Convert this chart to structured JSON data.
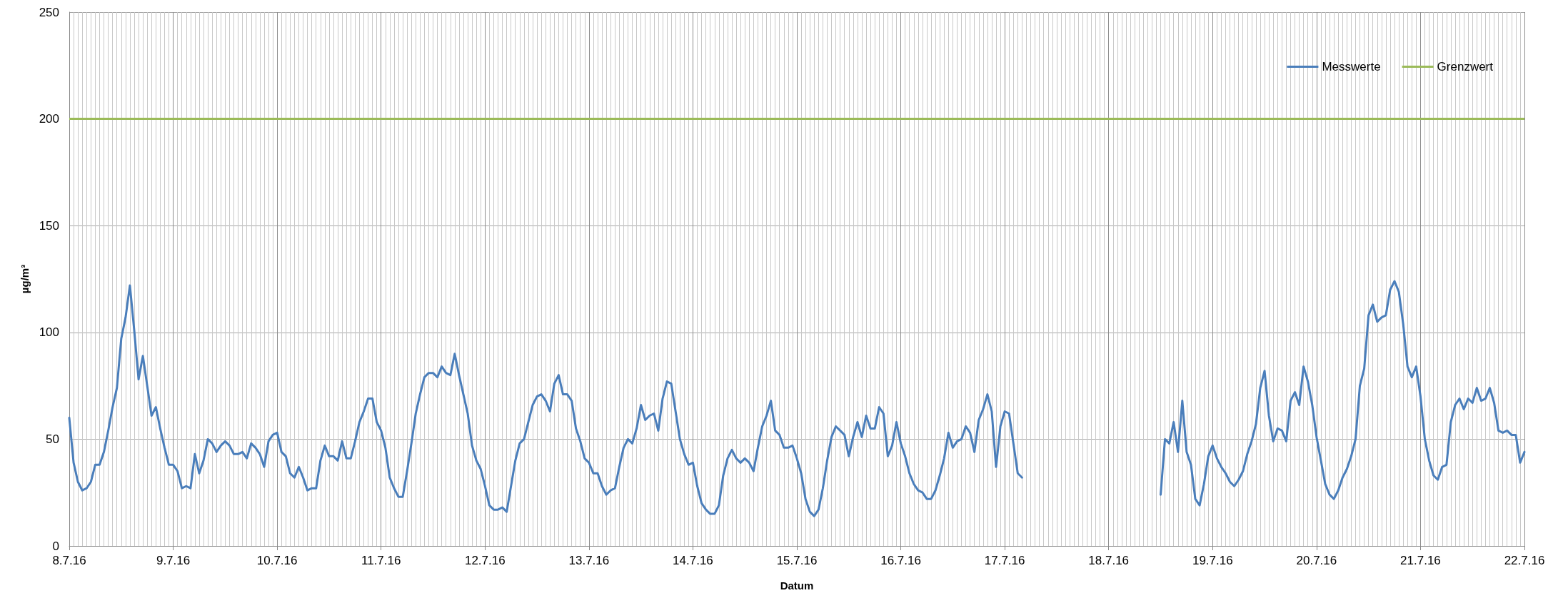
{
  "chart_data": {
    "type": "line",
    "xlabel": "Datum",
    "ylabel": "µg/m³",
    "xlim": [
      "--07-08",
      "--07-22"
    ],
    "xticks": [
      {
        "value": "--07-08",
        "label": "8.7.16"
      },
      {
        "value": "--07-09",
        "label": "9.7.16"
      },
      {
        "value": "--07-10",
        "label": "10.7.16"
      },
      {
        "value": "--07-11",
        "label": "11.7.16"
      },
      {
        "value": "--07-12",
        "label": "12.7.16"
      },
      {
        "value": "--07-13",
        "label": "13.7.16"
      },
      {
        "value": "--07-14",
        "label": "14.7.16"
      },
      {
        "value": "--07-15",
        "label": "15.7.16"
      },
      {
        "value": "--07-16",
        "label": "16.7.16"
      },
      {
        "value": "--07-17",
        "label": "17.7.16"
      },
      {
        "value": "--07-18",
        "label": "18.7.16"
      },
      {
        "value": "--07-19",
        "label": "19.7.16"
      },
      {
        "value": "--07-20",
        "label": "20.7.16"
      },
      {
        "value": "--07-21",
        "label": "21.7.16"
      },
      {
        "value": "--07-22",
        "label": "22.7.16"
      }
    ],
    "ylim": [
      0,
      250
    ],
    "yticks": [
      0,
      50,
      100,
      150,
      200,
      250
    ],
    "grid": true,
    "legend": "top right",
    "marker": "none",
    "line_style": "solid",
    "ref_lines": [
      {
        "axis": "y",
        "value": 200,
        "label": "Grenzwert",
        "color": "#9bbb59"
      }
    ],
    "series": [
      {
        "name": "Messwerte",
        "color": "#4a7ebb",
        "x": [
          "--07-08T00:00",
          "--07-08T01:00",
          "--07-08T02:00",
          "--07-08T03:00",
          "--07-08T04:00",
          "--07-08T05:00",
          "--07-08T06:00",
          "--07-08T07:00",
          "--07-08T08:00",
          "--07-08T09:00",
          "--07-08T10:00",
          "--07-08T11:00",
          "--07-08T12:00",
          "--07-08T13:00",
          "--07-08T14:00",
          "--07-08T15:00",
          "--07-08T16:00",
          "--07-08T17:00",
          "--07-08T18:00",
          "--07-08T19:00",
          "--07-08T20:00",
          "--07-08T21:00",
          "--07-08T22:00",
          "--07-08T23:00",
          "--07-09T00:00",
          "--07-09T01:00",
          "--07-09T02:00",
          "--07-09T03:00",
          "--07-09T04:00",
          "--07-09T05:00",
          "--07-09T06:00",
          "--07-09T07:00",
          "--07-09T08:00",
          "--07-09T09:00",
          "--07-09T10:00",
          "--07-09T11:00",
          "--07-09T12:00",
          "--07-09T13:00",
          "--07-09T14:00",
          "--07-09T15:00",
          "--07-09T16:00",
          "--07-09T17:00",
          "--07-09T18:00",
          "--07-09T19:00",
          "--07-09T20:00",
          "--07-09T21:00",
          "--07-09T22:00",
          "--07-09T23:00",
          "--07-10T00:00",
          "--07-10T01:00",
          "--07-10T02:00",
          "--07-10T03:00",
          "--07-10T04:00",
          "--07-10T05:00",
          "--07-10T06:00",
          "--07-10T07:00",
          "--07-10T08:00",
          "--07-10T09:00",
          "--07-10T10:00",
          "--07-10T11:00",
          "--07-10T12:00",
          "--07-10T13:00",
          "--07-10T14:00",
          "--07-10T15:00",
          "--07-10T16:00",
          "--07-10T17:00",
          "--07-10T18:00",
          "--07-10T19:00",
          "--07-10T20:00",
          "--07-10T21:00",
          "--07-10T22:00",
          "--07-10T23:00",
          "--07-11T00:00",
          "--07-11T01:00",
          "--07-11T02:00",
          "--07-11T03:00",
          "--07-11T04:00",
          "--07-11T05:00",
          "--07-11T06:00",
          "--07-11T07:00",
          "--07-11T08:00",
          "--07-11T09:00",
          "--07-11T10:00",
          "--07-11T11:00",
          "--07-11T12:00",
          "--07-11T13:00",
          "--07-11T14:00",
          "--07-11T15:00",
          "--07-11T16:00",
          "--07-11T17:00",
          "--07-11T18:00",
          "--07-11T19:00",
          "--07-11T20:00",
          "--07-11T21:00",
          "--07-11T22:00",
          "--07-11T23:00",
          "--07-12T00:00",
          "--07-12T01:00",
          "--07-12T02:00",
          "--07-12T03:00",
          "--07-12T04:00",
          "--07-12T05:00",
          "--07-12T06:00",
          "--07-12T07:00",
          "--07-12T08:00",
          "--07-12T09:00",
          "--07-12T10:00",
          "--07-12T11:00",
          "--07-12T12:00",
          "--07-12T13:00",
          "--07-12T14:00",
          "--07-12T15:00",
          "--07-12T16:00",
          "--07-12T17:00",
          "--07-12T18:00",
          "--07-12T19:00",
          "--07-12T20:00",
          "--07-12T21:00",
          "--07-12T22:00",
          "--07-12T23:00",
          "--07-13T00:00",
          "--07-13T01:00",
          "--07-13T02:00",
          "--07-13T03:00",
          "--07-13T04:00",
          "--07-13T05:00",
          "--07-13T06:00",
          "--07-13T07:00",
          "--07-13T08:00",
          "--07-13T09:00",
          "--07-13T10:00",
          "--07-13T11:00",
          "--07-13T12:00",
          "--07-13T13:00",
          "--07-13T14:00",
          "--07-13T15:00",
          "--07-13T16:00",
          "--07-13T17:00",
          "--07-13T18:00",
          "--07-13T19:00",
          "--07-13T20:00",
          "--07-13T21:00",
          "--07-13T22:00",
          "--07-13T23:00",
          "--07-14T00:00",
          "--07-14T01:00",
          "--07-14T02:00",
          "--07-14T03:00",
          "--07-14T04:00",
          "--07-14T05:00",
          "--07-14T06:00",
          "--07-14T07:00",
          "--07-14T08:00",
          "--07-14T09:00",
          "--07-14T10:00",
          "--07-14T11:00",
          "--07-14T12:00",
          "--07-14T13:00",
          "--07-14T14:00",
          "--07-14T15:00",
          "--07-14T16:00",
          "--07-14T17:00",
          "--07-14T18:00",
          "--07-14T19:00",
          "--07-14T20:00",
          "--07-14T21:00",
          "--07-14T22:00",
          "--07-14T23:00",
          "--07-15T00:00",
          "--07-15T01:00",
          "--07-15T02:00",
          "--07-15T03:00",
          "--07-15T04:00",
          "--07-15T05:00",
          "--07-15T06:00",
          "--07-15T07:00",
          "--07-15T08:00",
          "--07-15T09:00",
          "--07-15T10:00",
          "--07-15T11:00",
          "--07-15T12:00",
          "--07-15T13:00",
          "--07-15T14:00",
          "--07-15T15:00",
          "--07-15T16:00",
          "--07-15T17:00",
          "--07-15T18:00",
          "--07-15T19:00",
          "--07-15T20:00",
          "--07-15T21:00",
          "--07-15T22:00",
          "--07-15T23:00",
          "--07-16T00:00",
          "--07-16T01:00",
          "--07-16T02:00",
          "--07-16T03:00",
          "--07-16T04:00",
          "--07-16T05:00",
          "--07-16T06:00",
          "--07-16T07:00",
          "--07-16T08:00",
          "--07-16T09:00",
          "--07-16T10:00",
          "--07-16T11:00",
          "--07-16T12:00",
          "--07-16T13:00",
          "--07-16T14:00",
          "--07-16T15:00",
          "--07-16T16:00",
          "--07-16T17:00",
          "--07-16T18:00",
          "--07-16T19:00",
          "--07-16T20:00",
          "--07-16T21:00",
          "--07-16T22:00",
          "--07-16T23:00",
          "--07-17T00:00",
          "--07-17T01:00",
          "--07-17T02:00",
          "--07-17T03:00",
          "--07-17T04:00",
          "--07-17T05:00",
          "--07-18T12:00",
          "--07-18T13:00",
          "--07-18T14:00",
          "--07-18T15:00",
          "--07-18T16:00",
          "--07-18T17:00",
          "--07-18T18:00",
          "--07-18T19:00",
          "--07-18T20:00",
          "--07-18T21:00",
          "--07-18T22:00",
          "--07-18T23:00",
          "--07-19T00:00",
          "--07-19T01:00",
          "--07-19T02:00",
          "--07-19T03:00",
          "--07-19T04:00",
          "--07-19T05:00",
          "--07-19T06:00",
          "--07-19T07:00",
          "--07-19T08:00",
          "--07-19T09:00",
          "--07-19T10:00",
          "--07-19T11:00",
          "--07-19T12:00",
          "--07-19T13:00",
          "--07-19T14:00",
          "--07-19T15:00",
          "--07-19T16:00",
          "--07-19T17:00",
          "--07-19T18:00",
          "--07-19T19:00",
          "--07-19T20:00",
          "--07-19T21:00",
          "--07-19T22:00",
          "--07-19T23:00",
          "--07-20T00:00",
          "--07-20T01:00",
          "--07-20T02:00",
          "--07-20T03:00",
          "--07-20T04:00",
          "--07-20T05:00",
          "--07-20T06:00",
          "--07-20T07:00",
          "--07-20T08:00",
          "--07-20T09:00",
          "--07-20T10:00",
          "--07-20T11:00",
          "--07-20T12:00",
          "--07-20T13:00",
          "--07-20T14:00",
          "--07-20T15:00",
          "--07-20T16:00",
          "--07-20T17:00",
          "--07-20T18:00",
          "--07-20T19:00",
          "--07-20T20:00",
          "--07-20T21:00",
          "--07-20T22:00",
          "--07-20T23:00",
          "--07-21T00:00",
          "--07-21T01:00",
          "--07-21T02:00",
          "--07-21T03:00",
          "--07-21T04:00",
          "--07-21T05:00",
          "--07-21T06:00",
          "--07-21T07:00",
          "--07-21T08:00",
          "--07-21T09:00",
          "--07-21T10:00",
          "--07-21T11:00",
          "--07-21T12:00",
          "--07-21T13:00",
          "--07-21T14:00",
          "--07-21T15:00",
          "--07-21T16:00",
          "--07-21T17:00",
          "--07-21T18:00",
          "--07-21T19:00",
          "--07-21T20:00",
          "--07-21T21:00",
          "--07-21T22:00",
          "--07-21T23:00",
          "--07-22T00:00"
        ],
        "values": [
          60,
          39,
          30,
          26,
          27,
          30,
          38,
          38,
          44,
          54,
          65,
          74,
          97,
          107,
          122,
          101,
          78,
          89,
          75,
          61,
          65,
          55,
          46,
          38,
          38,
          35,
          27,
          28,
          27,
          43,
          34,
          40,
          50,
          48,
          44,
          47,
          49,
          47,
          43,
          43,
          44,
          41,
          48,
          46,
          43,
          37,
          49,
          52,
          53,
          44,
          42,
          34,
          32,
          37,
          32,
          26,
          27,
          27,
          40,
          47,
          42,
          42,
          40,
          49,
          41,
          41,
          49,
          58,
          63,
          69,
          69,
          58,
          54,
          46,
          32,
          27,
          23,
          23,
          35,
          48,
          62,
          71,
          79,
          81,
          81,
          79,
          84,
          81,
          80,
          90,
          80,
          71,
          62,
          47,
          40,
          36,
          28,
          19,
          17,
          17,
          18,
          16,
          28,
          40,
          48,
          50,
          58,
          66,
          70,
          71,
          68,
          63,
          76,
          80,
          71,
          71,
          68,
          55,
          49,
          41,
          39,
          34,
          34,
          28,
          24,
          26,
          27,
          37,
          46,
          50,
          48,
          55,
          66,
          59,
          61,
          62,
          54,
          69,
          77,
          76,
          63,
          50,
          43,
          38,
          39,
          28,
          20,
          17,
          15,
          15,
          19,
          33,
          41,
          45,
          41,
          39,
          41,
          39,
          35,
          46,
          56,
          61,
          68,
          54,
          52,
          46,
          46,
          47,
          41,
          34,
          22,
          16,
          14,
          17,
          27,
          40,
          51,
          56,
          54,
          52,
          42,
          51,
          58,
          51,
          61,
          55,
          55,
          65,
          62,
          42,
          47,
          58,
          48,
          42,
          34,
          29,
          26,
          25,
          22,
          22,
          26,
          33,
          41,
          53,
          46,
          49,
          50,
          56,
          53,
          44,
          59,
          64,
          71,
          63,
          37,
          56,
          63,
          62,
          48,
          34,
          32,
          null,
          24,
          50,
          48,
          58,
          44,
          68,
          44,
          38,
          22,
          19,
          29,
          42,
          47,
          41,
          37,
          34,
          30,
          28,
          31,
          35,
          43,
          49,
          57,
          74,
          82,
          61,
          49,
          55,
          54,
          49,
          68,
          72,
          66,
          84,
          77,
          66,
          51,
          40,
          29,
          24,
          22,
          26,
          32,
          36,
          42,
          50,
          75,
          83,
          108,
          113,
          105,
          107,
          108,
          120,
          124,
          119,
          104,
          84,
          79,
          84,
          70,
          50,
          40,
          33,
          31,
          37,
          38,
          58,
          66,
          69,
          64,
          69,
          67,
          74,
          68,
          69,
          74,
          67,
          54,
          53,
          54,
          52,
          52,
          39,
          44
        ]
      }
    ]
  }
}
